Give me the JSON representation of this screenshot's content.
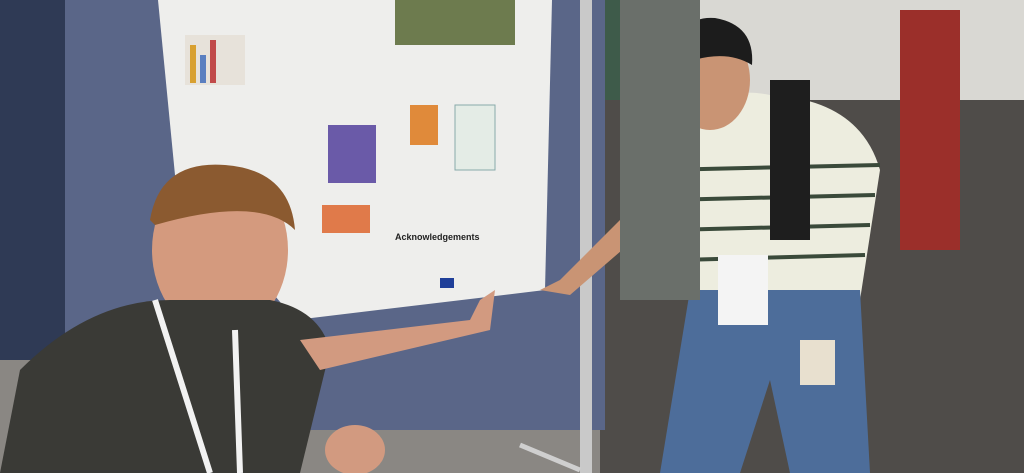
{
  "poster": {
    "section_heading": "Acknowledgements"
  }
}
